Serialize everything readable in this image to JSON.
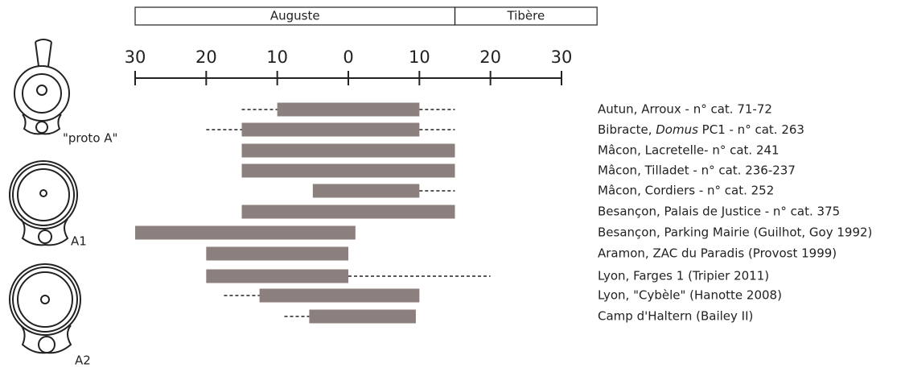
{
  "chart_data": {
    "type": "timeline",
    "periods": [
      {
        "name": "Auguste",
        "start": -30,
        "end": 15
      },
      {
        "name": "Tibère",
        "start": 15,
        "end": 35
      }
    ],
    "xlim": [
      -30,
      30
    ],
    "xticks": [
      {
        "value": -30,
        "label": "30"
      },
      {
        "value": -20,
        "label": "20"
      },
      {
        "value": -10,
        "label": "10"
      },
      0,
      10,
      20,
      30
    ],
    "color": "#8b807e",
    "rows": [
      {
        "name": "Autun, Arroux - n° cat. 71-72",
        "start": -10,
        "end": 10,
        "uncertain_from": -15,
        "uncertain_to": 15
      },
      {
        "name": [
          {
            "text": "Bibracte, "
          },
          {
            "text": "Domus",
            "italic": true
          },
          {
            "text": " PC1 - n° cat. 263"
          }
        ],
        "start": -15,
        "end": 10,
        "uncertain_from": -20,
        "uncertain_to": 15
      },
      {
        "name": "Mâcon, Lacretelle- n° cat. 241",
        "start": -15,
        "end": 15
      },
      {
        "name": "Mâcon, Tilladet - n° cat. 236-237",
        "start": -15,
        "end": 15
      },
      {
        "name": "Mâcon, Cordiers - n° cat. 252",
        "start": -5,
        "end": 10,
        "uncertain_to": 15
      },
      {
        "name": "Besançon, Palais de Justice - n° cat. 375",
        "start": -15,
        "end": 15
      },
      {
        "name": "Besançon, Parking Mairie (Guilhot, Goy 1992)",
        "start": -30,
        "end": 1
      },
      {
        "name": "Aramon, ZAC du Paradis (Provost 1999)",
        "start": -20,
        "end": 0
      },
      {
        "name": "Lyon, Farges 1 (Tripier 2011)",
        "start": -20,
        "end": 0,
        "uncertain_to": 20
      },
      {
        "name": "Lyon, \"Cybèle\" (Hanotte 2008)",
        "start": -12.5,
        "end": 10,
        "uncertain_from": -17.5
      },
      {
        "name": "Camp d'Haltern (Bailey II)",
        "start": -5.5,
        "end": 9.5,
        "uncertain_from": -9
      }
    ],
    "lamp_types": [
      "\"proto A\"",
      "A1",
      "A2"
    ]
  }
}
